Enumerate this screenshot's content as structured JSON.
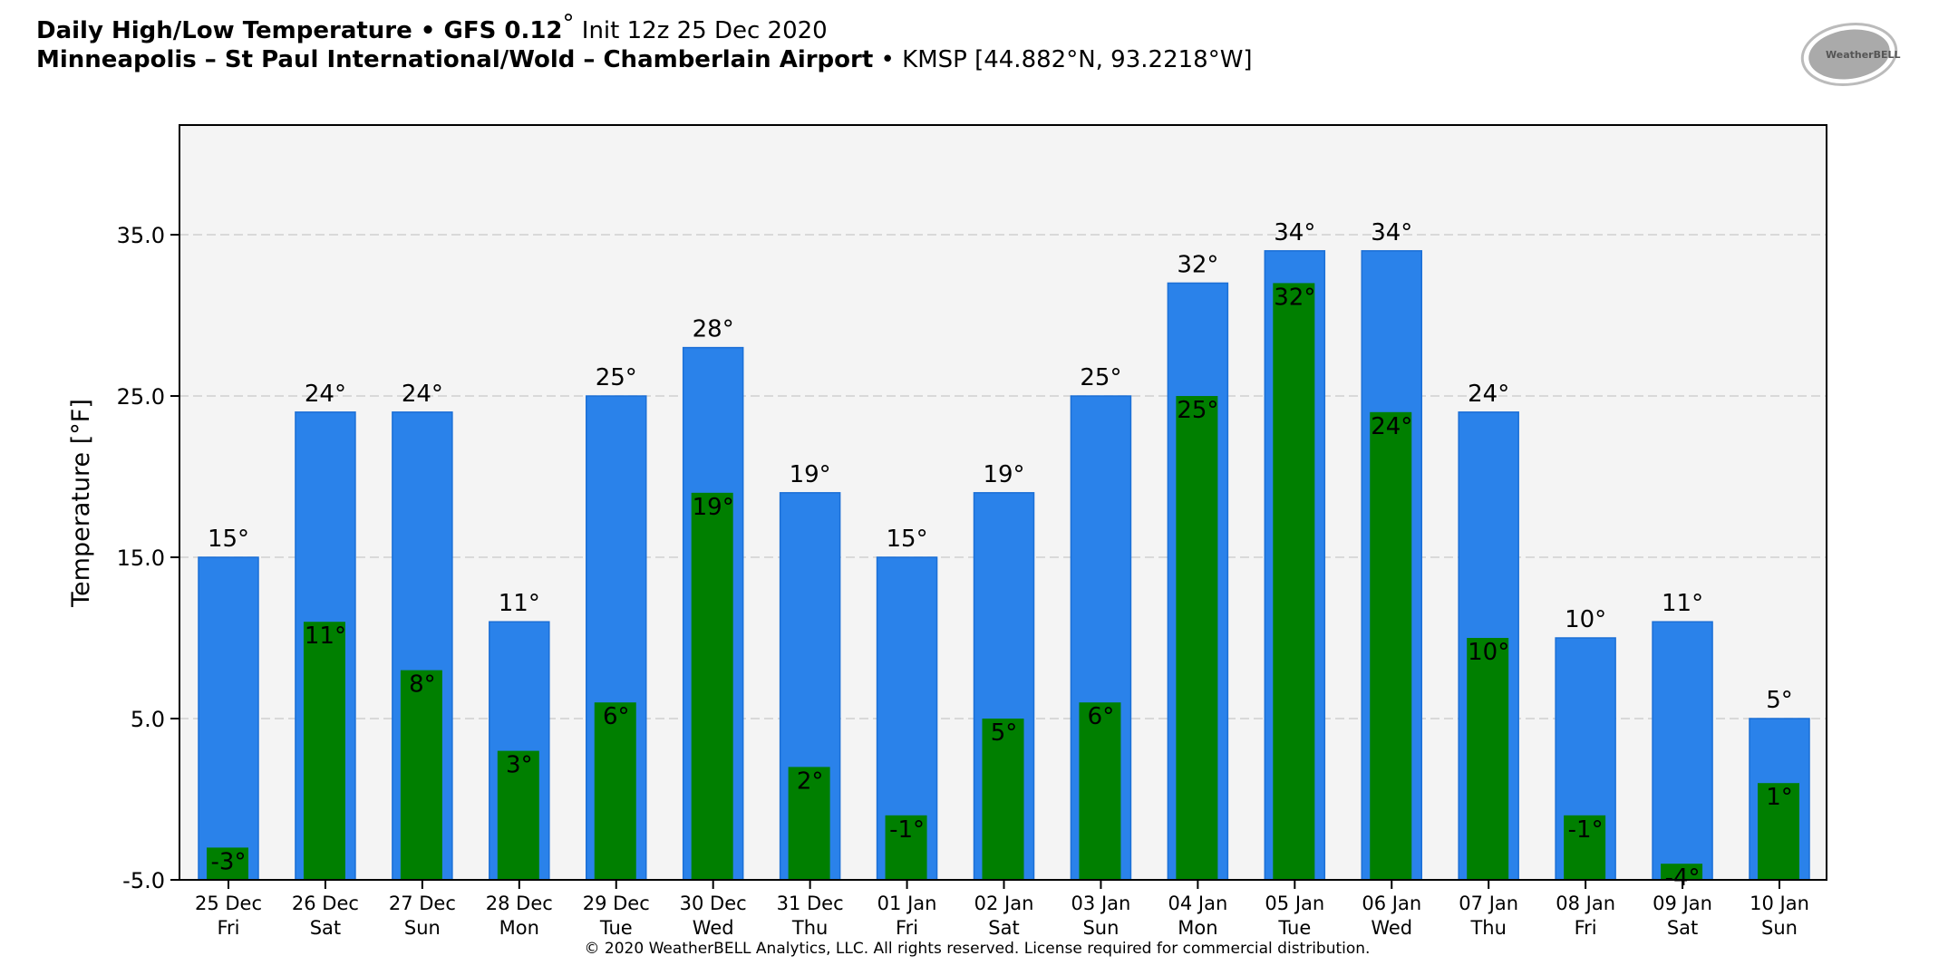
{
  "header": {
    "line1_bold": "Daily High/Low Temperature • GFS 0.12",
    "line1_deg": "°",
    "line1_rest": " Init 12z 25 Dec 2020",
    "line2_bold": "Minneapolis – St Paul International/Wold – Chamberlain Airport",
    "line2_rest": " • KMSP [44.882°N, 93.2218°W]"
  },
  "logo": {
    "text": "WeatherBELL"
  },
  "footer": {
    "copyright": "© 2020 WeatherBELL Analytics, LLC. All rights reserved. License required for commercial distribution."
  },
  "colors": {
    "high": "#2a82ea",
    "low": "#007f00",
    "plot_bg": "#f4f4f4",
    "grid": "#d0d0d0"
  },
  "chart_data": {
    "type": "bar",
    "title": "Daily High/Low Temperature",
    "xlabel": "",
    "ylabel": "Temperature [°F]",
    "ylim": [
      -5,
      41.8
    ],
    "yticks": [
      -5,
      5,
      15,
      25,
      35
    ],
    "ytick_labels": [
      "-5.0",
      "5.0",
      "15.0",
      "25.0",
      "35.0"
    ],
    "grid": true,
    "categories": [
      "25 Dec",
      "26 Dec",
      "27 Dec",
      "28 Dec",
      "29 Dec",
      "30 Dec",
      "31 Dec",
      "01 Jan",
      "02 Jan",
      "03 Jan",
      "04 Jan",
      "05 Jan",
      "06 Jan",
      "07 Jan",
      "08 Jan",
      "09 Jan",
      "10 Jan"
    ],
    "weekdays": [
      "Fri",
      "Sat",
      "Sun",
      "Mon",
      "Tue",
      "Wed",
      "Thu",
      "Fri",
      "Sat",
      "Sun",
      "Mon",
      "Tue",
      "Wed",
      "Thu",
      "Fri",
      "Sat",
      "Sun"
    ],
    "series": [
      {
        "name": "High",
        "values": [
          15,
          24,
          24,
          11,
          25,
          28,
          19,
          15,
          19,
          25,
          32,
          34,
          34,
          24,
          10,
          11,
          5
        ]
      },
      {
        "name": "Low",
        "values": [
          -3,
          11,
          8,
          3,
          6,
          19,
          2,
          -1,
          5,
          6,
          25,
          32,
          24,
          10,
          -1,
          -4,
          1
        ]
      }
    ],
    "label_suffix": "°"
  }
}
